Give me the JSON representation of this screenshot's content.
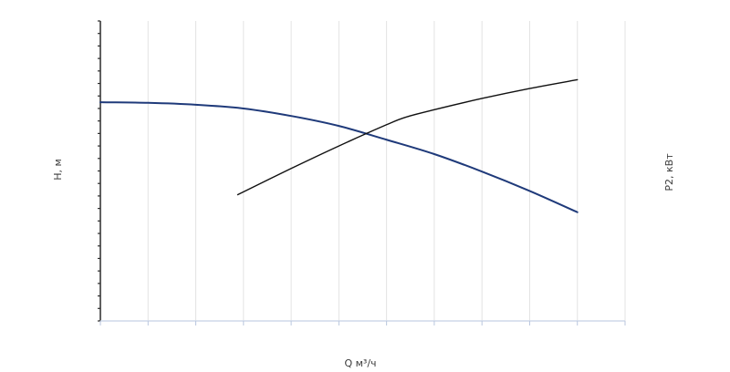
{
  "chart_data": {
    "type": "line",
    "xlabel": "Q м³/ч",
    "ylabel_left": "H, м",
    "ylabel_right": "P2, кВт",
    "xlim": [
      0,
      275
    ],
    "ylim_left": [
      0,
      48
    ],
    "ylim_right": [
      0,
      24
    ],
    "x_ticks": [
      "0",
      "25",
      "50",
      "75",
      "100",
      "125",
      "150",
      "175",
      "200",
      "225",
      "250",
      "275"
    ],
    "y_left_ticks": [
      "0",
      "8",
      "16",
      "24",
      "32",
      "40",
      "48"
    ],
    "y_right_ticks": [
      "0",
      "4",
      "8",
      "12",
      "16",
      "20",
      "24"
    ],
    "grid": "vertical",
    "series": [
      {
        "axis": "left",
        "color": "#1f3a7a",
        "x": [
          0,
          25,
          50,
          75,
          100,
          125,
          150,
          175,
          200,
          225,
          250
        ],
        "y": [
          35,
          34.9,
          34.6,
          34,
          32.8,
          31.2,
          29,
          26.7,
          23.9,
          20.8,
          17.4
        ]
      },
      {
        "axis": "right",
        "color": "#111111",
        "x": [
          72,
          100,
          125,
          150,
          160,
          175,
          200,
          225,
          250
        ],
        "y": [
          10.1,
          12.2,
          14,
          15.7,
          16.3,
          16.9,
          17.8,
          18.6,
          19.3
        ]
      }
    ]
  }
}
